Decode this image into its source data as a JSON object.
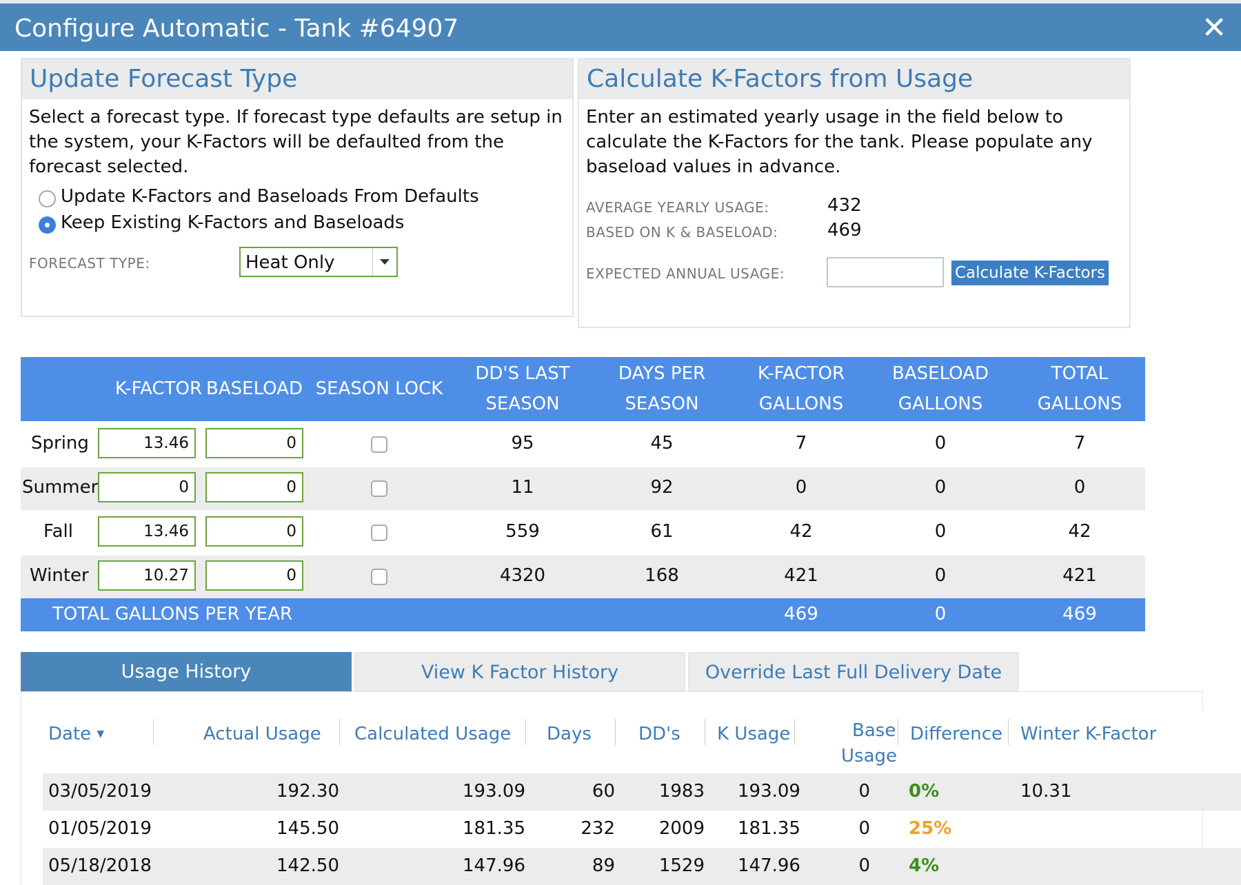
{
  "window": {
    "title": "Configure Automatic - Tank #64907",
    "close_icon": "close-icon"
  },
  "forecast": {
    "heading": "Update Forecast Type",
    "description": "Select a forecast type. If forecast type defaults are setup in the system, your K-Factors will be defaulted from the forecast selected.",
    "options": [
      "Update K-Factors and Baseloads From Defaults",
      "Keep Existing K-Factors and Baseloads"
    ],
    "selected_option": 1,
    "type_label": "FORECAST TYPE:",
    "type_value": "Heat Only"
  },
  "calc": {
    "heading": "Calculate K-Factors from Usage",
    "description": "Enter an estimated yearly usage in the field below to calculate the K-Factors for the tank. Please populate any baseload values in advance.",
    "avg_label": "AVERAGE YEARLY USAGE:",
    "avg_value": "432",
    "based_label": "BASED ON K & BASELOAD:",
    "based_value": "469",
    "expected_label": "EXPECTED ANNUAL USAGE:",
    "expected_value": "",
    "button": "Calculate K-Factors"
  },
  "kfactors": {
    "headers": {
      "kfactor": "K-FACTOR",
      "baseload": "BASELOAD",
      "season_lock": "SEASON LOCK",
      "dd_last_1": "DD'S LAST",
      "dd_last_2": "SEASON",
      "days_1": "DAYS PER",
      "days_2": "SEASON",
      "kgal_1": "K-FACTOR",
      "kgal_2": "GALLONS",
      "bgal_1": "BASELOAD",
      "bgal_2": "GALLONS",
      "tgal_1": "TOTAL",
      "tgal_2": "GALLONS"
    },
    "rows": [
      {
        "season": "Spring",
        "kfactor": "13.46",
        "baseload": "0",
        "locked": false,
        "dd": "95",
        "days": "45",
        "kgal": "7",
        "bgal": "0",
        "tgal": "7"
      },
      {
        "season": "Summer",
        "kfactor": "0",
        "baseload": "0",
        "locked": false,
        "dd": "11",
        "days": "92",
        "kgal": "0",
        "bgal": "0",
        "tgal": "0"
      },
      {
        "season": "Fall",
        "kfactor": "13.46",
        "baseload": "0",
        "locked": false,
        "dd": "559",
        "days": "61",
        "kgal": "42",
        "bgal": "0",
        "tgal": "42"
      },
      {
        "season": "Winter",
        "kfactor": "10.27",
        "baseload": "0",
        "locked": false,
        "dd": "4320",
        "days": "168",
        "kgal": "421",
        "bgal": "0",
        "tgal": "421"
      }
    ],
    "total": {
      "label": "TOTAL GALLONS PER YEAR",
      "kgal": "469",
      "bgal": "0",
      "tgal": "469"
    }
  },
  "tabs": {
    "usage_history": "Usage History",
    "kfactor_history": "View K Factor History",
    "override": "Override Last Full Delivery Date",
    "active": "usage_history"
  },
  "history": {
    "headers": {
      "date": "Date",
      "actual": "Actual Usage",
      "calculated": "Calculated Usage",
      "days": "Days",
      "dds": "DD's",
      "kusage": "K Usage",
      "base_1": "Base",
      "base_2": "Usage",
      "difference": "Difference",
      "winter_k": "Winter K-Factor"
    },
    "sort_icon": "sort-down-icon",
    "rows": [
      {
        "date": "03/05/2019",
        "actual": "192.30",
        "calculated": "193.09",
        "days": "60",
        "dds": "1983",
        "kusage": "193.09",
        "base": "0",
        "difference": "0%",
        "diff_color": "#3c8f1c",
        "winter_k": "10.31"
      },
      {
        "date": "01/05/2019",
        "actual": "145.50",
        "calculated": "181.35",
        "days": "232",
        "dds": "2009",
        "kusage": "181.35",
        "base": "0",
        "difference": "25%",
        "diff_color": "#f0a22a",
        "winter_k": ""
      },
      {
        "date": "05/18/2018",
        "actual": "142.50",
        "calculated": "147.96",
        "days": "89",
        "dds": "1529",
        "kusage": "147.96",
        "base": "0",
        "difference": "4%",
        "diff_color": "#3c8f1c",
        "winter_k": ""
      }
    ]
  },
  "colors": {
    "title_bar": "#4a86b9",
    "table_header": "#4f8ee6",
    "link": "#3d7cb6",
    "input_border": "#6aa53b"
  }
}
